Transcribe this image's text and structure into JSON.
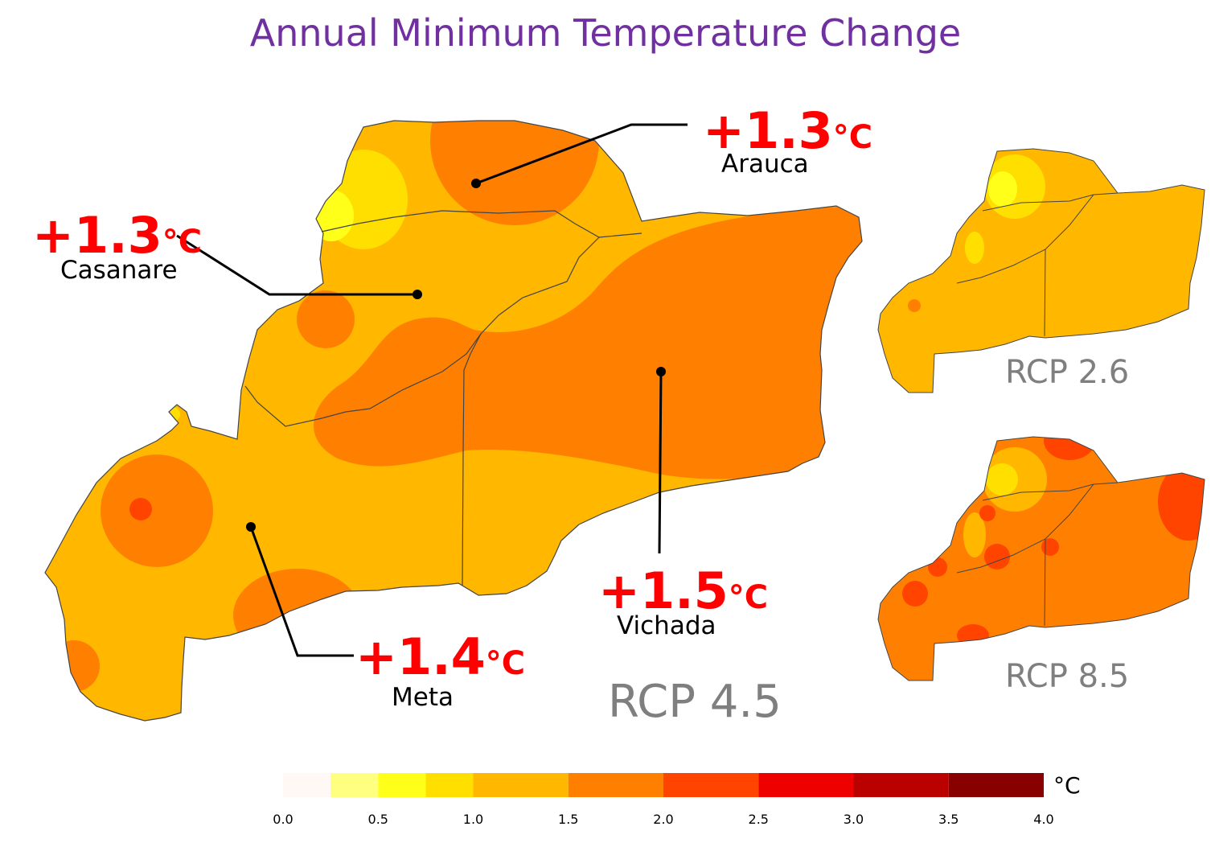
{
  "title": "Annual Minimum Temperature Change",
  "main_map": {
    "scenario": "RCP 4.5",
    "regions": [
      {
        "name": "Arauca",
        "value": "+1.3",
        "unit": "°C"
      },
      {
        "name": "Casanare",
        "value": "+1.3",
        "unit": "°C"
      },
      {
        "name": "Meta",
        "value": "+1.4",
        "unit": "°C"
      },
      {
        "name": "Vichada",
        "value": "+1.5",
        "unit": "°C"
      }
    ]
  },
  "inset_maps": [
    {
      "scenario": "RCP 2.6"
    },
    {
      "scenario": "RCP 8.5"
    }
  ],
  "legend": {
    "unit": "°C",
    "ticks": [
      "0.0",
      "0.5",
      "1.0",
      "1.5",
      "2.0",
      "2.5",
      "3.0",
      "3.5",
      "4.0"
    ],
    "bins": [
      {
        "from": 0.0,
        "to": 0.25,
        "color": "#fff8f4"
      },
      {
        "from": 0.25,
        "to": 0.5,
        "color": "#ffff80"
      },
      {
        "from": 0.5,
        "to": 0.75,
        "color": "#ffff1a"
      },
      {
        "from": 0.75,
        "to": 1.0,
        "color": "#ffdf00"
      },
      {
        "from": 1.0,
        "to": 1.5,
        "color": "#ffb700"
      },
      {
        "from": 1.5,
        "to": 2.0,
        "color": "#ff8000"
      },
      {
        "from": 2.0,
        "to": 2.5,
        "color": "#ff4400"
      },
      {
        "from": 2.5,
        "to": 3.0,
        "color": "#ee0000"
      },
      {
        "from": 3.0,
        "to": 3.5,
        "color": "#bb0000"
      },
      {
        "from": 3.5,
        "to": 4.0,
        "color": "#880000"
      }
    ]
  }
}
